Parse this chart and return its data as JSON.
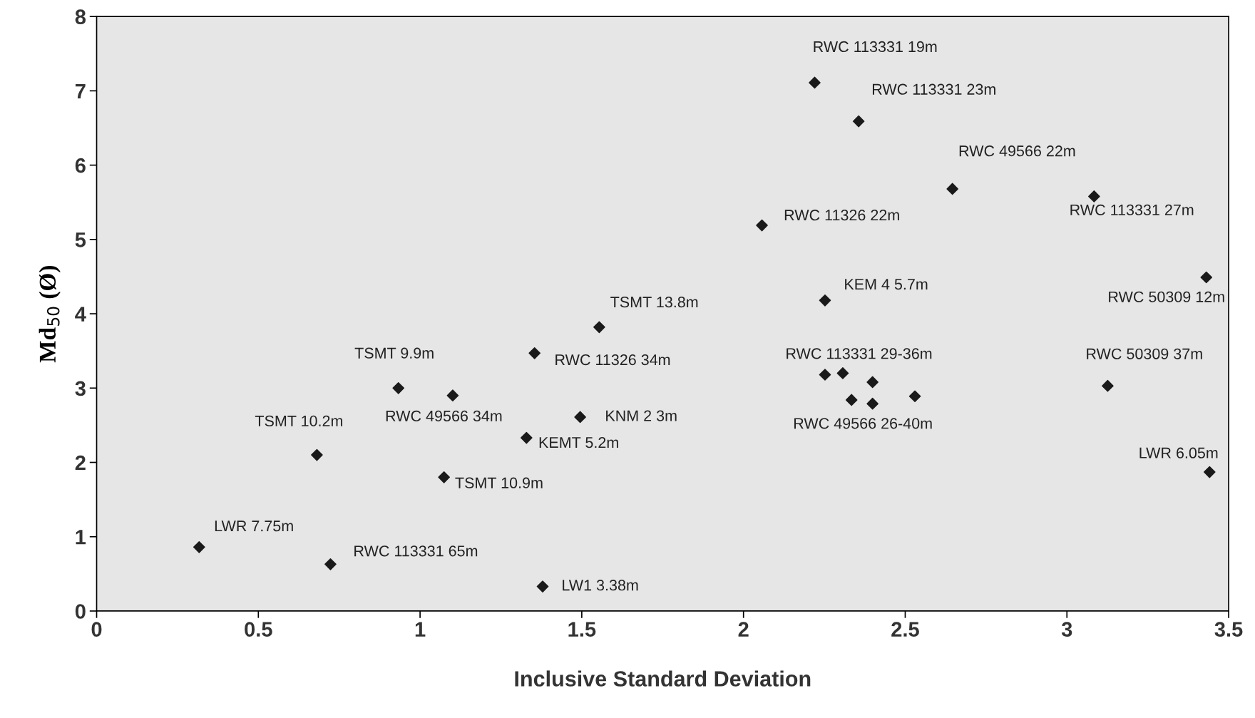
{
  "chart_data": {
    "type": "scatter",
    "xlabel": "Inclusive Standard Deviation",
    "ylabel": "Md$_{50}$ (Ø)",
    "x": [
      0.317,
      0.723,
      1.379,
      0.681,
      1.074,
      0.933,
      1.101,
      1.329,
      1.495,
      1.354,
      1.554,
      2.057,
      2.22,
      2.356,
      2.646,
      3.084,
      2.252,
      3.431,
      3.126,
      3.441,
      2.252,
      2.307,
      2.399,
      2.334,
      2.399,
      2.53
    ],
    "series": [
      {
        "color": "#1a1a1a",
        "values": [
          0.86,
          0.63,
          0.33,
          2.1,
          1.8,
          3.0,
          2.9,
          2.33,
          2.61,
          3.47,
          3.82,
          5.19,
          7.11,
          6.59,
          5.68,
          5.58,
          4.18,
          4.49,
          3.03,
          1.87,
          3.18,
          3.2,
          3.08,
          2.84,
          2.79,
          2.89
        ]
      }
    ],
    "marker": "diamond",
    "grid": false,
    "legend": false,
    "xlim": [
      0,
      3.5
    ],
    "xticks": [
      0,
      0.5,
      1,
      1.5,
      2,
      2.5,
      3,
      3.5
    ],
    "ylim": [
      0,
      8
    ],
    "yticks": [
      0,
      1,
      2,
      3,
      4,
      5,
      6,
      7,
      8
    ],
    "annotations": [
      {
        "text": "LWR 7.75m",
        "x": 0.317,
        "y": 0.86
      },
      {
        "text": "RWC 113331 65m",
        "x": 0.723,
        "y": 0.63
      },
      {
        "text": "LW1 3.38m",
        "x": 1.379,
        "y": 0.33
      },
      {
        "text": "TSMT 10.2m",
        "x": 0.681,
        "y": 2.1
      },
      {
        "text": "TSMT 10.9m",
        "x": 1.074,
        "y": 1.8
      },
      {
        "text": "TSMT 9.9m",
        "x": 0.933,
        "y": 3.0
      },
      {
        "text": "RWC 49566 34m",
        "x": 1.101,
        "y": 2.9
      },
      {
        "text": "KEMT 5.2m",
        "x": 1.329,
        "y": 2.33
      },
      {
        "text": "KNM 2 3m",
        "x": 1.495,
        "y": 2.61
      },
      {
        "text": "RWC 11326 34m",
        "x": 1.354,
        "y": 3.47
      },
      {
        "text": "TSMT 13.8m",
        "x": 1.554,
        "y": 3.82
      },
      {
        "text": "RWC 11326 22m",
        "x": 2.057,
        "y": 5.19
      },
      {
        "text": "RWC 113331 19m",
        "x": 2.22,
        "y": 7.11
      },
      {
        "text": "RWC 113331 23m",
        "x": 2.356,
        "y": 6.59
      },
      {
        "text": "RWC 49566 22m",
        "x": 2.646,
        "y": 5.68
      },
      {
        "text": "RWC 113331 27m",
        "x": 3.084,
        "y": 5.58
      },
      {
        "text": "KEM 4 5.7m",
        "x": 2.252,
        "y": 4.18
      },
      {
        "text": "RWC 50309 12m",
        "x": 3.431,
        "y": 4.49
      },
      {
        "text": "RWC 50309 37m",
        "x": 3.126,
        "y": 3.03
      },
      {
        "text": "LWR 6.05m",
        "x": 3.441,
        "y": 1.87
      },
      {
        "text": "RWC 113331 29-36m",
        "x": 2.252,
        "y": 3.18
      },
      {
        "text": "RWC 49566 26-40m",
        "x": 2.334,
        "y": 2.84
      }
    ]
  }
}
